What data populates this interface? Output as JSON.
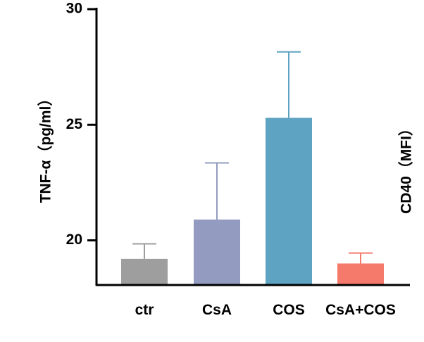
{
  "chart_data": [
    {
      "type": "bar",
      "categories": [
        "ctr",
        "CsA",
        "COS",
        "CsA+COS"
      ],
      "series": [
        {
          "values": [
            19.2,
            20.9,
            25.3,
            19.0
          ],
          "errors": [
            0.65,
            2.45,
            2.85,
            0.45
          ],
          "colors": [
            "#9e9e9e",
            "#939cc0",
            "#5fa3c2",
            "#f57a6c"
          ]
        }
      ],
      "ylabel": "TNF-α（pg/ml）",
      "yticks": [
        20,
        25,
        30
      ],
      "ylim": [
        18.1,
        30
      ],
      "error_bars": "upper-only",
      "grid": false,
      "legend": "none"
    },
    {
      "type": "bar",
      "ylabel": "CD40（MFI）",
      "partially_visible": true
    }
  ]
}
